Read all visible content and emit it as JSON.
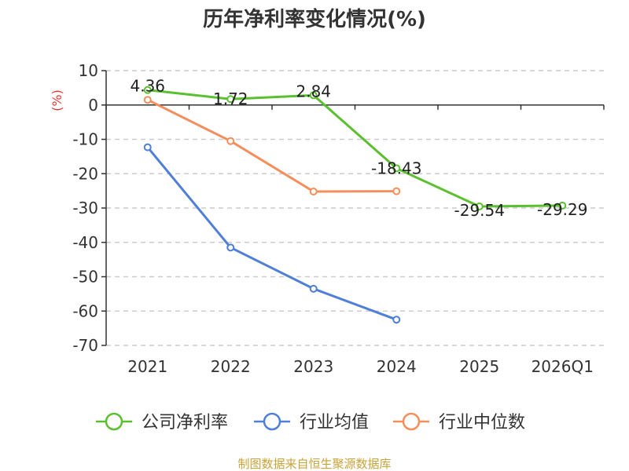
{
  "chart_data": {
    "type": "line",
    "title": "历年净利率变化情况(%)",
    "ylabel": "(%)",
    "xlabel": "",
    "categories": [
      "2021",
      "2022",
      "2023",
      "2024",
      "2025",
      "2026Q1"
    ],
    "ylim": [
      -70,
      10
    ],
    "yticks": [
      10,
      0,
      -10,
      -20,
      -30,
      -40,
      -50,
      -60,
      -70
    ],
    "grid": true,
    "legend_position": "bottom",
    "series": [
      {
        "name": "公司净利率",
        "color": "#5ac02f",
        "values": [
          4.36,
          1.72,
          2.84,
          -18.43,
          -29.54,
          -29.29
        ],
        "labels": [
          "4.36",
          "1.72",
          "2.84",
          "-18.43",
          "-29.54",
          "-29.29"
        ]
      },
      {
        "name": "行业均值",
        "color": "#4f7fd9",
        "values": [
          -12.3,
          -41.5,
          -53.5,
          -62.5,
          null,
          null
        ]
      },
      {
        "name": "行业中位数",
        "color": "#f58e5b",
        "values": [
          1.5,
          -10.5,
          -25.2,
          -25.1,
          null,
          null
        ]
      }
    ]
  },
  "source_text": "制图数据来自恒生聚源数据库",
  "colors": {
    "axis": "#333333",
    "grid": "#cccccc",
    "ylabel": "#e53935",
    "source": "#c9a23a"
  }
}
